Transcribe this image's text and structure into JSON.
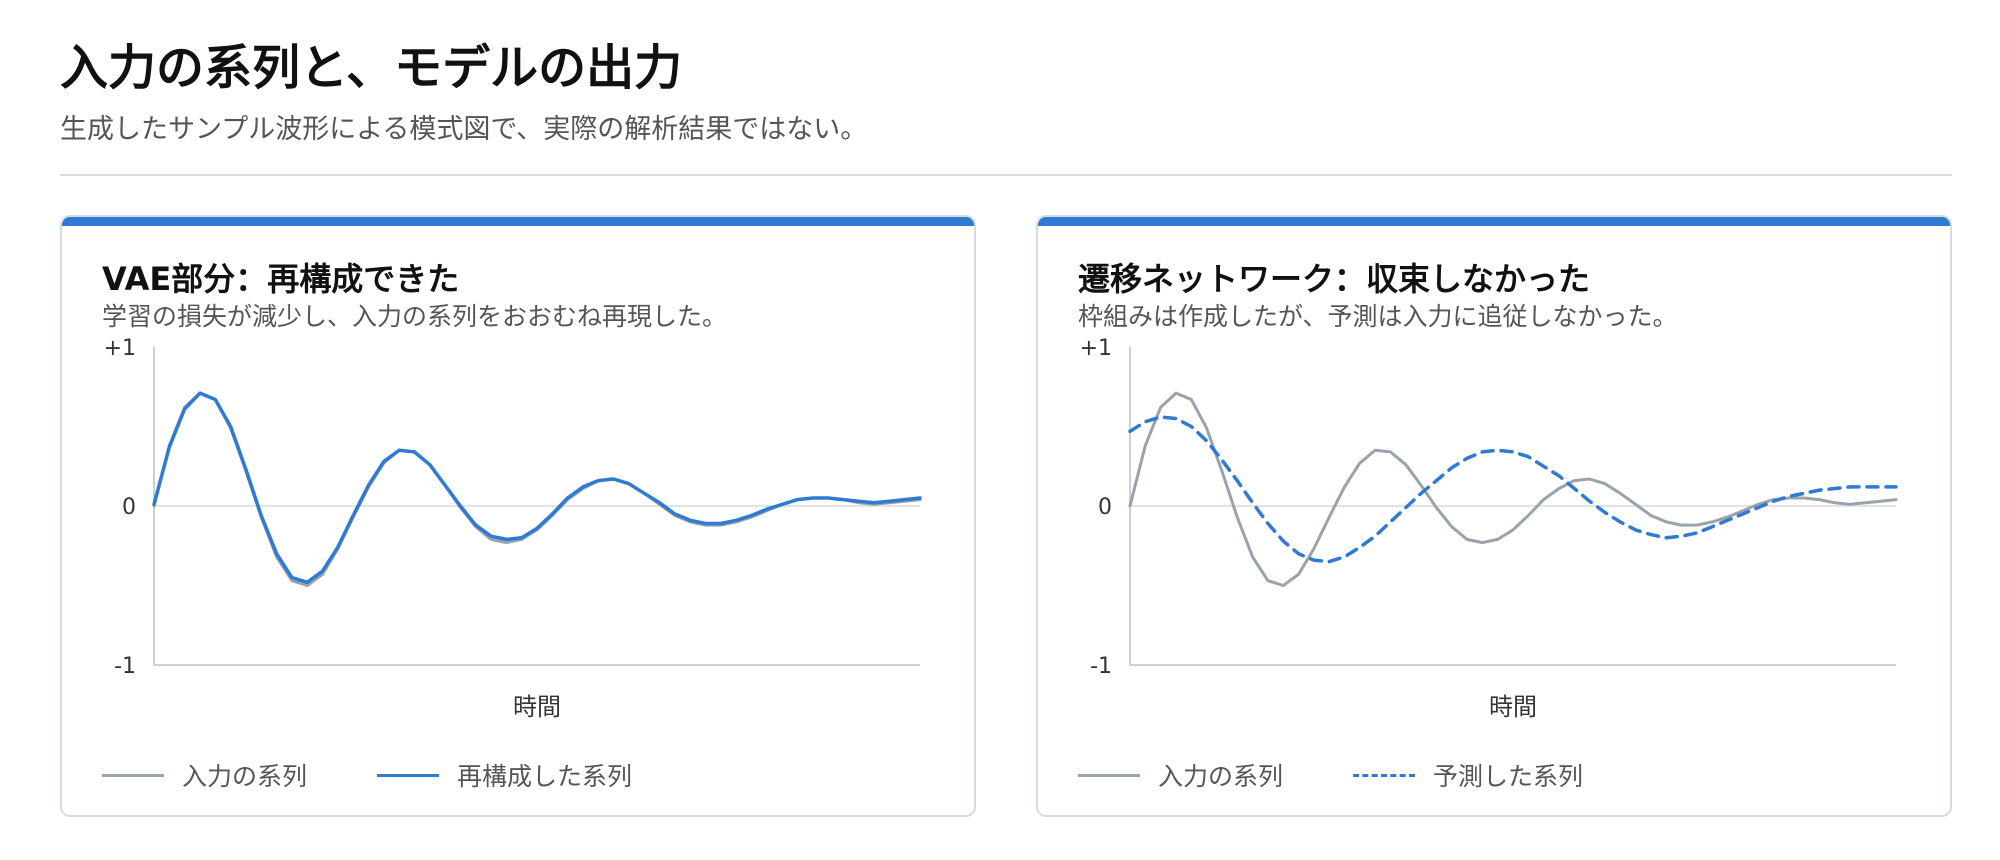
{
  "header": {
    "title": "入力の系列と、モデルの出力",
    "subtitle": "生成したサンプル波形による模式図で、実際の解析結果ではない。"
  },
  "colors": {
    "accent": "#2f7ad2",
    "input_series": "#9aa3ad",
    "model_series": "#2f7ad2",
    "zero_line": "#e3e3e3",
    "axis": "#cfcfcf"
  },
  "cards": [
    {
      "title": "VAE部分：再構成できた",
      "subtitle": "学習の損失が減少し、入力の系列をおおむね再現した。",
      "chart_data": {
        "type": "line",
        "xlabel": "時間",
        "ylabel": "",
        "ylim": [
          -1,
          1
        ],
        "yticks": [
          "+1",
          "0",
          "-1"
        ],
        "grid": false,
        "legend_position": "bottom-left",
        "x": [
          0,
          0.02,
          0.04,
          0.06,
          0.08,
          0.1,
          0.12,
          0.14,
          0.16,
          0.18,
          0.2,
          0.22,
          0.24,
          0.26,
          0.28,
          0.3,
          0.32,
          0.34,
          0.36,
          0.38,
          0.4,
          0.42,
          0.44,
          0.46,
          0.48,
          0.5,
          0.52,
          0.54,
          0.56,
          0.58,
          0.6,
          0.62,
          0.64,
          0.66,
          0.68,
          0.7,
          0.72,
          0.74,
          0.76,
          0.78,
          0.8,
          0.82,
          0.84,
          0.86,
          0.88,
          0.9,
          0.92,
          0.94,
          0.96,
          0.98,
          1.0
        ],
        "series": [
          {
            "name": "入力の系列",
            "style": "solid",
            "values": [
              0.0,
              0.38,
              0.62,
              0.71,
              0.67,
              0.49,
              0.22,
              -0.07,
              -0.32,
              -0.47,
              -0.5,
              -0.43,
              -0.27,
              -0.07,
              0.12,
              0.27,
              0.35,
              0.34,
              0.26,
              0.13,
              -0.01,
              -0.13,
              -0.21,
              -0.23,
              -0.21,
              -0.15,
              -0.06,
              0.04,
              0.11,
              0.16,
              0.17,
              0.14,
              0.08,
              0.01,
              -0.06,
              -0.1,
              -0.12,
              -0.12,
              -0.1,
              -0.07,
              -0.03,
              0.01,
              0.04,
              0.05,
              0.05,
              0.04,
              0.02,
              0.01,
              0.02,
              0.03,
              0.04
            ]
          },
          {
            "name": "再構成した系列",
            "style": "solid",
            "values": [
              0.01,
              0.37,
              0.61,
              0.71,
              0.67,
              0.5,
              0.23,
              -0.06,
              -0.3,
              -0.45,
              -0.48,
              -0.41,
              -0.26,
              -0.06,
              0.13,
              0.28,
              0.35,
              0.34,
              0.26,
              0.13,
              0.0,
              -0.12,
              -0.19,
              -0.21,
              -0.2,
              -0.14,
              -0.05,
              0.05,
              0.12,
              0.16,
              0.17,
              0.14,
              0.08,
              0.02,
              -0.05,
              -0.09,
              -0.11,
              -0.11,
              -0.09,
              -0.06,
              -0.02,
              0.01,
              0.04,
              0.05,
              0.05,
              0.04,
              0.03,
              0.02,
              0.03,
              0.04,
              0.05
            ]
          }
        ]
      }
    },
    {
      "title": "遷移ネットワーク：収束しなかった",
      "subtitle": "枠組みは作成したが、予測は入力に追従しなかった。",
      "chart_data": {
        "type": "line",
        "xlabel": "時間",
        "ylabel": "",
        "ylim": [
          -1,
          1
        ],
        "yticks": [
          "+1",
          "0",
          "-1"
        ],
        "grid": false,
        "legend_position": "bottom-left",
        "x": [
          0,
          0.02,
          0.04,
          0.06,
          0.08,
          0.1,
          0.12,
          0.14,
          0.16,
          0.18,
          0.2,
          0.22,
          0.24,
          0.26,
          0.28,
          0.3,
          0.32,
          0.34,
          0.36,
          0.38,
          0.4,
          0.42,
          0.44,
          0.46,
          0.48,
          0.5,
          0.52,
          0.54,
          0.56,
          0.58,
          0.6,
          0.62,
          0.64,
          0.66,
          0.68,
          0.7,
          0.72,
          0.74,
          0.76,
          0.78,
          0.8,
          0.82,
          0.84,
          0.86,
          0.88,
          0.9,
          0.92,
          0.94,
          0.96,
          0.98,
          1.0
        ],
        "series": [
          {
            "name": "入力の系列",
            "style": "solid",
            "values": [
              0.0,
              0.38,
              0.62,
              0.71,
              0.67,
              0.49,
              0.22,
              -0.07,
              -0.32,
              -0.47,
              -0.5,
              -0.43,
              -0.27,
              -0.07,
              0.12,
              0.27,
              0.35,
              0.34,
              0.26,
              0.13,
              -0.01,
              -0.13,
              -0.21,
              -0.23,
              -0.21,
              -0.15,
              -0.06,
              0.04,
              0.11,
              0.16,
              0.17,
              0.14,
              0.08,
              0.01,
              -0.06,
              -0.1,
              -0.12,
              -0.12,
              -0.1,
              -0.07,
              -0.03,
              0.01,
              0.04,
              0.05,
              0.05,
              0.04,
              0.02,
              0.01,
              0.02,
              0.03,
              0.04
            ]
          },
          {
            "name": "予測した系列",
            "style": "dashed",
            "values": [
              0.47,
              0.53,
              0.56,
              0.55,
              0.5,
              0.41,
              0.29,
              0.16,
              0.02,
              -0.11,
              -0.22,
              -0.3,
              -0.34,
              -0.35,
              -0.32,
              -0.26,
              -0.19,
              -0.1,
              -0.01,
              0.08,
              0.16,
              0.24,
              0.3,
              0.34,
              0.35,
              0.34,
              0.31,
              0.25,
              0.19,
              0.11,
              0.03,
              -0.04,
              -0.1,
              -0.15,
              -0.18,
              -0.2,
              -0.19,
              -0.17,
              -0.13,
              -0.09,
              -0.05,
              -0.01,
              0.03,
              0.06,
              0.08,
              0.1,
              0.11,
              0.12,
              0.12,
              0.12,
              0.12
            ]
          }
        ]
      }
    }
  ]
}
